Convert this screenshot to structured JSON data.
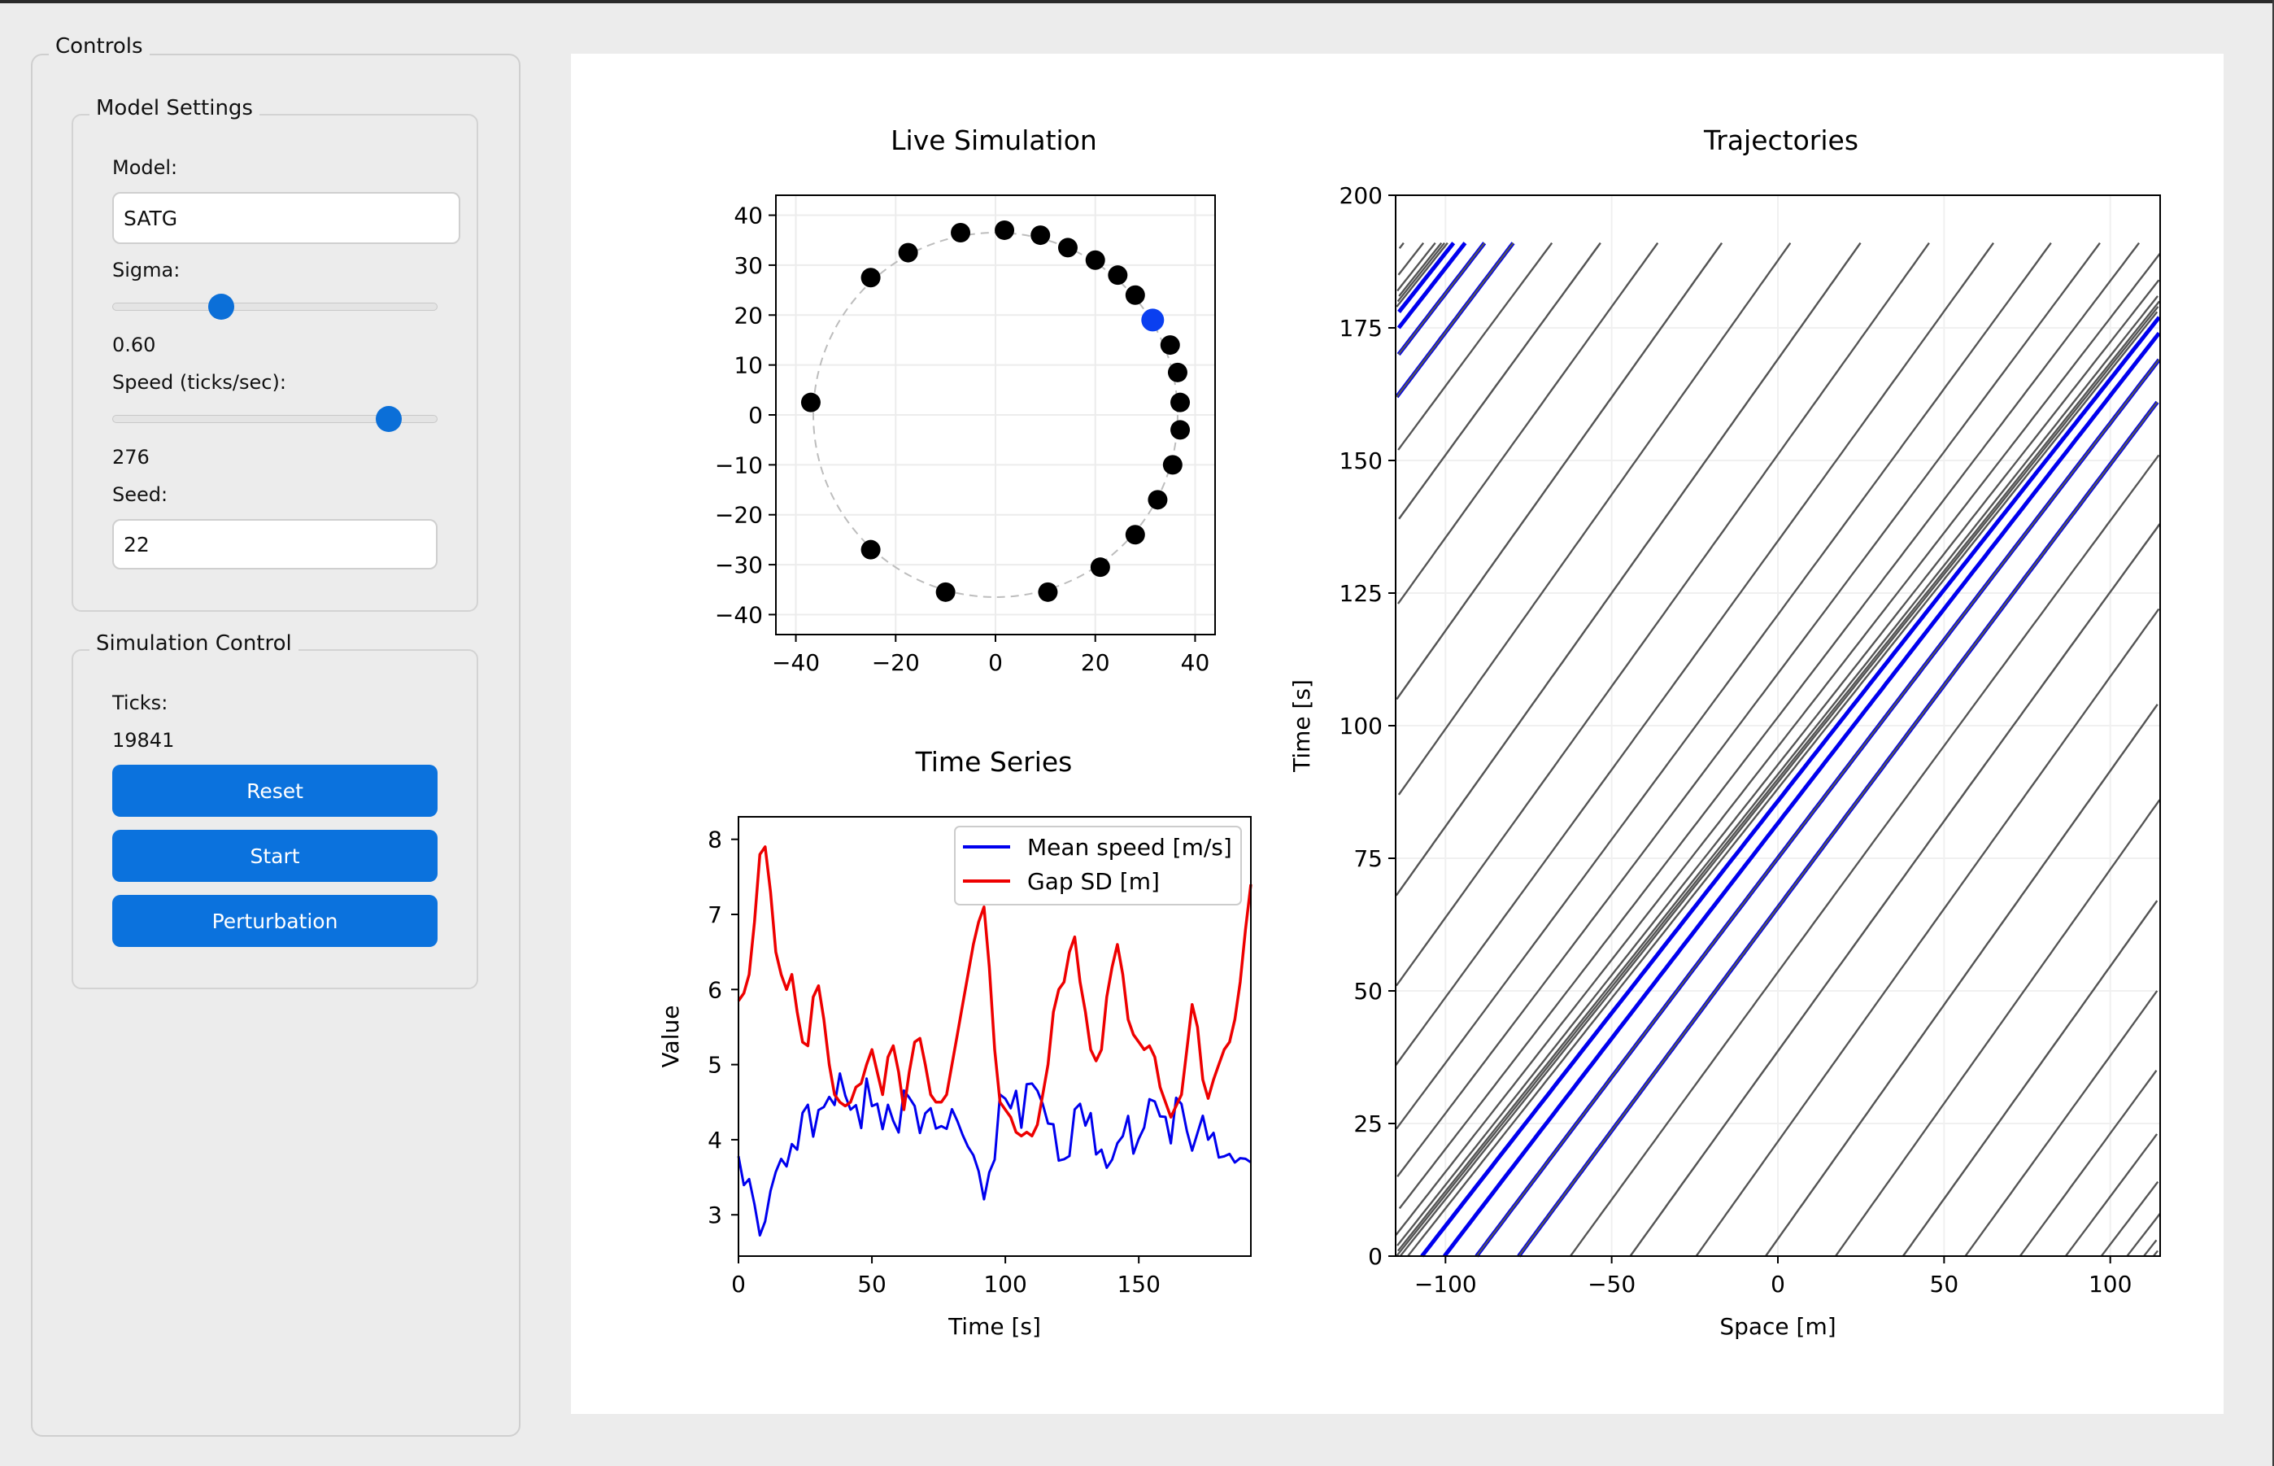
{
  "controls": {
    "title": "Controls",
    "model_settings": {
      "title": "Model Settings",
      "model_label": "Model:",
      "model_value": "SATG",
      "sigma_label": "Sigma:",
      "sigma_value": "0.60",
      "sigma_fraction": 0.32,
      "speed_label": "Speed (ticks/sec):",
      "speed_value": "276",
      "speed_fraction": 0.88,
      "seed_label": "Seed:",
      "seed_value": "22"
    },
    "simulation_control": {
      "title": "Simulation Control",
      "ticks_label": "Ticks:",
      "ticks_value": "19841",
      "reset_label": "Reset",
      "start_label": "Start",
      "perturbation_label": "Perturbation"
    }
  },
  "chart_data": [
    {
      "type": "scatter",
      "title": "Live Simulation",
      "xlim": [
        -44,
        44
      ],
      "ylim": [
        -44,
        44
      ],
      "xticks": [
        -40,
        -20,
        0,
        20,
        40
      ],
      "yticks": [
        40,
        30,
        20,
        10,
        0,
        -10,
        -20,
        -30,
        -40
      ],
      "tick_labels_x": [
        "−40",
        "−20",
        "0",
        "20",
        "40"
      ],
      "tick_labels_y": [
        "40",
        "30",
        "20",
        "10",
        "0",
        "−10",
        "−20",
        "−30",
        "−40"
      ],
      "ring_radius": 36.5,
      "grid": true,
      "points": [
        [
          -37,
          2.5
        ],
        [
          -25,
          27.5
        ],
        [
          -17.5,
          32.5
        ],
        [
          -7,
          36.5
        ],
        [
          1.8,
          37
        ],
        [
          9,
          36
        ],
        [
          14.5,
          33.5
        ],
        [
          20,
          31
        ],
        [
          24.5,
          28
        ],
        [
          28,
          24
        ],
        [
          35,
          14
        ],
        [
          36.5,
          8.5
        ],
        [
          37,
          2.5
        ],
        [
          37,
          -3
        ],
        [
          35.5,
          -10
        ],
        [
          32.5,
          -17
        ],
        [
          28,
          -24
        ],
        [
          21,
          -30.5
        ],
        [
          10.5,
          -35.5
        ],
        [
          -10,
          -35.5
        ],
        [
          -25,
          -27
        ]
      ],
      "highlight_point": [
        31.5,
        19
      ]
    },
    {
      "type": "line",
      "title": "Time Series",
      "xlabel": "Time [s]",
      "ylabel": "Value",
      "xlim": [
        0,
        192
      ],
      "ylim": [
        2.45,
        8.3
      ],
      "xticks": [
        0,
        50,
        100,
        150
      ],
      "yticks": [
        3,
        4,
        5,
        6,
        7,
        8
      ],
      "legend_position": "top-right",
      "series": [
        {
          "name": "Mean speed [m/s]",
          "color": "#0000ee",
          "x": [
            0,
            2,
            4,
            6,
            8,
            10,
            12,
            14,
            16,
            18,
            20,
            22,
            24,
            26,
            28,
            30,
            32,
            34,
            36,
            38,
            40,
            42,
            44,
            46,
            48,
            50,
            52,
            54,
            56,
            58,
            60,
            62,
            64,
            66,
            68,
            70,
            72,
            74,
            76,
            78,
            80,
            82,
            84,
            86,
            88,
            90,
            92,
            94,
            96,
            98,
            100,
            102,
            104,
            106,
            108,
            110,
            112,
            114,
            116,
            118,
            120,
            122,
            124,
            126,
            128,
            130,
            132,
            134,
            136,
            138,
            140,
            142,
            144,
            146,
            148,
            150,
            152,
            154,
            156,
            158,
            160,
            162,
            164,
            166,
            168,
            170,
            172,
            174,
            176,
            178,
            180,
            182,
            184,
            186,
            188,
            190,
            192
          ],
          "values": [
            3.7,
            3.3,
            3.6,
            3.1,
            2.9,
            2.8,
            3.3,
            3.5,
            3.7,
            3.8,
            3.9,
            4.0,
            4.2,
            4.45,
            4.0,
            4.4,
            4.6,
            4.5,
            4.55,
            4.7,
            4.6,
            4.4,
            4.5,
            4.3,
            4.7,
            4.5,
            4.3,
            4.2,
            4.5,
            4.3,
            4.2,
            4.5,
            4.6,
            4.3,
            4.2,
            4.4,
            4.45,
            4.2,
            4.0,
            4.2,
            4.3,
            4.4,
            4.1,
            3.9,
            3.8,
            3.4,
            3.3,
            3.5,
            3.9,
            4.6,
            4.5,
            4.4,
            4.5,
            4.3,
            4.7,
            4.9,
            4.6,
            4.4,
            4.2,
            4.1,
            3.9,
            3.7,
            3.9,
            4.3,
            4.4,
            4.2,
            4.3,
            4.0,
            3.8,
            3.7,
            3.6,
            3.9,
            4.1,
            4.3,
            4.0,
            3.9,
            4.2,
            4.4,
            4.5,
            4.4,
            4.3,
            4.1,
            4.4,
            4.5,
            4.0,
            3.9,
            4.2,
            4.3,
            4.1,
            3.9,
            3.8,
            3.7,
            3.9,
            3.8,
            3.7,
            3.8,
            3.5
          ]
        },
        {
          "name": "Gap SD [m]",
          "color": "#ee0000",
          "x": [
            0,
            2,
            4,
            6,
            8,
            10,
            12,
            14,
            16,
            18,
            20,
            22,
            24,
            26,
            28,
            30,
            32,
            34,
            36,
            38,
            40,
            42,
            44,
            46,
            48,
            50,
            52,
            54,
            56,
            58,
            60,
            62,
            64,
            66,
            68,
            70,
            72,
            74,
            76,
            78,
            80,
            82,
            84,
            86,
            88,
            90,
            92,
            94,
            96,
            98,
            100,
            102,
            104,
            106,
            108,
            110,
            112,
            114,
            116,
            118,
            120,
            122,
            124,
            126,
            128,
            130,
            132,
            134,
            136,
            138,
            140,
            142,
            144,
            146,
            148,
            150,
            152,
            154,
            156,
            158,
            160,
            162,
            164,
            166,
            168,
            170,
            172,
            174,
            176,
            178,
            180,
            182,
            184,
            186,
            188,
            190,
            192
          ],
          "values": [
            5.85,
            5.95,
            6.2,
            6.9,
            7.8,
            7.9,
            7.3,
            6.5,
            6.2,
            6.0,
            6.2,
            5.7,
            5.3,
            5.25,
            5.9,
            6.05,
            5.6,
            5.0,
            4.6,
            4.5,
            4.45,
            4.5,
            4.7,
            4.75,
            5.0,
            5.2,
            4.9,
            4.6,
            5.1,
            5.25,
            4.9,
            4.4,
            4.9,
            5.3,
            5.35,
            5.0,
            4.6,
            4.5,
            4.5,
            4.6,
            5.0,
            5.4,
            5.8,
            6.2,
            6.6,
            6.9,
            7.1,
            6.3,
            5.2,
            4.5,
            4.4,
            4.3,
            4.1,
            4.05,
            4.1,
            4.05,
            4.2,
            4.6,
            5.0,
            5.7,
            6.0,
            6.1,
            6.5,
            6.7,
            6.1,
            5.7,
            5.2,
            5.05,
            5.2,
            5.9,
            6.3,
            6.6,
            6.2,
            5.6,
            5.4,
            5.3,
            5.2,
            5.25,
            5.1,
            4.7,
            4.5,
            4.3,
            4.45,
            4.6,
            5.2,
            5.8,
            5.5,
            4.8,
            4.55,
            4.8,
            5.0,
            5.2,
            5.3,
            5.6,
            6.1,
            6.8,
            7.4
          ]
        }
      ]
    },
    {
      "type": "line",
      "title": "Trajectories",
      "xlabel": "Space [m]",
      "ylabel": "Time [s]",
      "xlim": [
        -115,
        115
      ],
      "ylim": [
        0,
        200
      ],
      "xticks": [
        -100,
        -50,
        0,
        50,
        100
      ],
      "yticks": [
        0,
        25,
        50,
        75,
        100,
        125,
        150,
        175,
        200
      ],
      "tick_labels_x": [
        "−100",
        "−50",
        "0",
        "50",
        "100"
      ],
      "grid": true,
      "period": 230,
      "time_max": 191,
      "vehicles": 21,
      "mean_speed_m_per_s": 4.3,
      "highlight_color": "#0000ee",
      "trace_color": "#555555"
    }
  ]
}
